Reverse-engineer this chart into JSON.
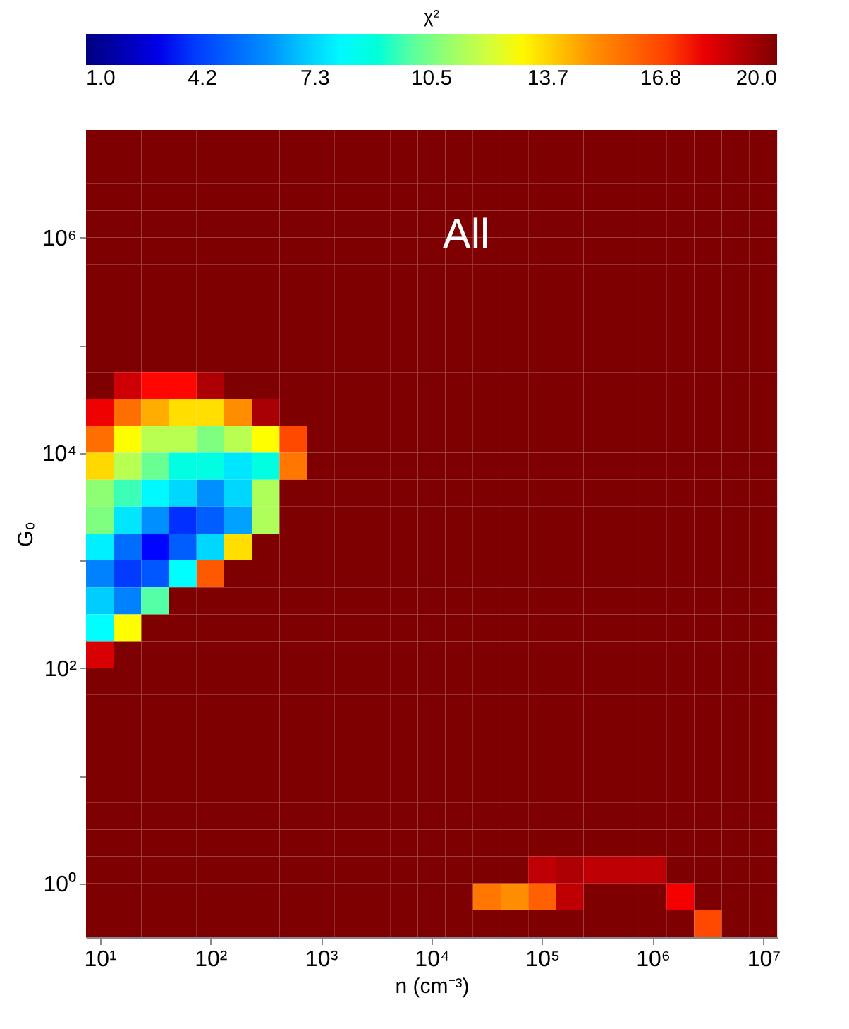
{
  "chart_data": {
    "type": "heatmap",
    "xlabel": "n (cm⁻³)",
    "ylabel": "G₀",
    "clabel": "χ²",
    "annotations": [
      "All"
    ],
    "log": "xy",
    "xlim": [
      7.499,
      13340000
    ],
    "ylim": [
      0.3162,
      10000000
    ],
    "xticks": [
      {
        "value": 10,
        "label": "10¹"
      },
      {
        "value": 100,
        "label": "10²"
      },
      {
        "value": 1000,
        "label": "10³"
      },
      {
        "value": 10000,
        "label": "10⁴"
      },
      {
        "value": 100000,
        "label": "10⁵"
      },
      {
        "value": 1000000,
        "label": "10⁶"
      },
      {
        "value": 10000000,
        "label": "10⁷"
      }
    ],
    "yticks": [
      {
        "value": 1,
        "label": "10⁰"
      },
      {
        "value": 10,
        "label": null
      },
      {
        "value": 100,
        "label": "10²"
      },
      {
        "value": 1000,
        "label": null
      },
      {
        "value": 10000,
        "label": "10⁴"
      },
      {
        "value": 100000,
        "label": null
      },
      {
        "value": 1000000,
        "label": "10⁶"
      }
    ],
    "clim": [
      1,
      20
    ],
    "cticks": [
      {
        "value": 1,
        "label": "1.0"
      },
      {
        "value": 4.2,
        "label": "4.2"
      },
      {
        "value": 7.3,
        "label": "7.3"
      },
      {
        "value": 10.5,
        "label": "10.5"
      },
      {
        "value": 13.7,
        "label": "13.7"
      },
      {
        "value": 16.8,
        "label": "16.8"
      },
      {
        "value": 20,
        "label": "20.0"
      }
    ],
    "x": [
      10,
      17.78,
      31.62,
      56.23,
      100,
      177.8,
      316.2,
      562.3,
      1000,
      1778,
      3162,
      5623,
      10000,
      17780,
      31620,
      56230,
      100000,
      177800,
      316200,
      562300,
      1000000,
      1778000,
      3162000,
      5623000,
      10000000
    ],
    "y": [
      7499000,
      4217000,
      2371000,
      1334000,
      749900,
      421700,
      237100,
      133400,
      74990,
      42170,
      23710,
      13340,
      7499,
      4217,
      2371,
      1334,
      749.9,
      421.7,
      237.1,
      133.4,
      74.99,
      42.17,
      23.71,
      13.34,
      7.499,
      4.217,
      2.371,
      1.334,
      0.7499,
      0.4217
    ],
    "cells": [
      [
        20,
        20,
        20,
        20,
        20,
        20,
        20,
        20,
        20,
        20,
        20,
        20,
        20,
        20,
        20,
        20,
        20,
        20,
        20,
        20,
        20,
        20,
        20,
        20,
        20
      ],
      [
        20,
        20,
        20,
        20,
        20,
        20,
        20,
        20,
        20,
        20,
        20,
        20,
        20,
        20,
        20,
        20,
        20,
        20,
        20,
        20,
        20,
        20,
        20,
        20,
        20
      ],
      [
        20,
        20,
        20,
        20,
        20,
        20,
        20,
        20,
        20,
        20,
        20,
        20,
        20,
        20,
        20,
        20,
        20,
        20,
        20,
        20,
        20,
        20,
        20,
        20,
        20
      ],
      [
        20,
        20,
        20,
        20,
        20,
        20,
        20,
        20,
        20,
        20,
        20,
        20,
        20,
        20,
        20,
        20,
        20,
        20,
        20,
        20,
        20,
        20,
        20,
        20,
        20
      ],
      [
        20,
        20,
        20,
        20,
        20,
        20,
        20,
        20,
        20,
        20,
        20,
        20,
        20,
        20,
        20,
        20,
        20,
        20,
        20,
        20,
        20,
        20,
        20,
        20,
        20
      ],
      [
        20,
        20,
        20,
        20,
        20,
        20,
        20,
        20,
        20,
        20,
        20,
        20,
        20,
        20,
        20,
        20,
        20,
        20,
        20,
        20,
        20,
        20,
        20,
        20,
        20
      ],
      [
        20,
        20,
        20,
        20,
        20,
        20,
        20,
        20,
        20,
        20,
        20,
        20,
        20,
        20,
        20,
        20,
        20,
        20,
        20,
        20,
        20,
        20,
        20,
        20,
        20
      ],
      [
        20,
        20,
        20,
        20,
        20,
        20,
        20,
        20,
        20,
        20,
        20,
        20,
        20,
        20,
        20,
        20,
        20,
        20,
        20,
        20,
        20,
        20,
        20,
        20,
        20
      ],
      [
        20,
        20,
        20,
        20,
        20,
        20,
        20,
        20,
        20,
        20,
        20,
        20,
        20,
        20,
        20,
        20,
        20,
        20,
        20,
        20,
        20,
        20,
        20,
        20,
        20
      ],
      [
        20,
        18.5,
        17.6,
        17.6,
        19.1,
        20,
        20,
        20,
        20,
        20,
        20,
        20,
        20,
        20,
        20,
        20,
        20,
        20,
        20,
        20,
        20,
        20,
        20,
        20,
        20
      ],
      [
        17.9,
        15.8,
        14.4,
        13.5,
        13.5,
        15.0,
        19.2,
        20,
        20,
        20,
        20,
        20,
        20,
        20,
        20,
        20,
        20,
        20,
        20,
        20,
        20,
        20,
        20,
        20,
        20
      ],
      [
        15.8,
        12.9,
        11.6,
        11.6,
        10.5,
        11.6,
        12.9,
        16.8,
        20,
        20,
        20,
        20,
        20,
        20,
        20,
        20,
        20,
        20,
        20,
        20,
        20,
        20,
        20,
        20,
        20
      ],
      [
        13.6,
        11.6,
        10.2,
        8.8,
        8.8,
        7.6,
        8.8,
        15.5,
        20,
        20,
        20,
        20,
        20,
        20,
        20,
        20,
        20,
        20,
        20,
        20,
        20,
        20,
        20,
        20,
        20
      ],
      [
        10.8,
        9.6,
        8.0,
        7.3,
        6.0,
        7.3,
        11.4,
        20,
        20,
        20,
        20,
        20,
        20,
        20,
        20,
        20,
        20,
        20,
        20,
        20,
        20,
        20,
        20,
        20,
        20
      ],
      [
        10.5,
        7.6,
        6.0,
        3.8,
        4.8,
        6.3,
        11.4,
        20,
        20,
        20,
        20,
        20,
        20,
        20,
        20,
        20,
        20,
        20,
        20,
        20,
        20,
        20,
        20,
        20,
        20
      ],
      [
        7.8,
        5.2,
        3.4,
        4.8,
        7.3,
        13.5,
        20,
        20,
        20,
        20,
        20,
        20,
        20,
        20,
        20,
        20,
        20,
        20,
        20,
        20,
        20,
        20,
        20,
        20,
        20
      ],
      [
        5.8,
        4.0,
        4.6,
        8.1,
        16.4,
        20,
        20,
        20,
        20,
        20,
        20,
        20,
        20,
        20,
        20,
        20,
        20,
        20,
        20,
        20,
        20,
        20,
        20,
        20,
        20
      ],
      [
        7.1,
        5.8,
        9.9,
        20,
        20,
        20,
        20,
        20,
        20,
        20,
        20,
        20,
        20,
        20,
        20,
        20,
        20,
        20,
        20,
        20,
        20,
        20,
        20,
        20,
        20
      ],
      [
        8.1,
        12.9,
        20,
        20,
        20,
        20,
        20,
        20,
        20,
        20,
        20,
        20,
        20,
        20,
        20,
        20,
        20,
        20,
        20,
        20,
        20,
        20,
        20,
        20,
        20
      ],
      [
        18.3,
        20,
        20,
        20,
        20,
        20,
        20,
        20,
        20,
        20,
        20,
        20,
        20,
        20,
        20,
        20,
        20,
        20,
        20,
        20,
        20,
        20,
        20,
        20,
        20
      ],
      [
        20,
        20,
        20,
        20,
        20,
        20,
        20,
        20,
        20,
        20,
        20,
        20,
        20,
        20,
        20,
        20,
        20,
        20,
        20,
        20,
        20,
        20,
        20,
        20,
        20
      ],
      [
        20,
        20,
        20,
        20,
        20,
        20,
        20,
        20,
        20,
        20,
        20,
        20,
        20,
        20,
        20,
        20,
        20,
        20,
        20,
        20,
        20,
        20,
        20,
        20,
        20
      ],
      [
        20,
        20,
        20,
        20,
        20,
        20,
        20,
        20,
        20,
        20,
        20,
        20,
        20,
        20,
        20,
        20,
        20,
        20,
        20,
        20,
        20,
        20,
        20,
        20,
        20
      ],
      [
        20,
        20,
        20,
        20,
        20,
        20,
        20,
        20,
        20,
        20,
        20,
        20,
        20,
        20,
        20,
        20,
        20,
        20,
        20,
        20,
        20,
        20,
        20,
        20,
        20
      ],
      [
        20,
        20,
        20,
        20,
        20,
        20,
        20,
        20,
        20,
        20,
        20,
        20,
        20,
        20,
        20,
        20,
        20,
        20,
        20,
        20,
        20,
        20,
        20,
        20,
        20
      ],
      [
        20,
        20,
        20,
        20,
        20,
        20,
        20,
        20,
        20,
        20,
        20,
        20,
        20,
        20,
        20,
        20,
        20,
        20,
        20,
        20,
        20,
        20,
        20,
        20,
        20
      ],
      [
        20,
        20,
        20,
        20,
        20,
        20,
        20,
        20,
        20,
        20,
        20,
        20,
        20,
        20,
        20,
        20,
        20,
        20,
        20,
        20,
        20,
        20,
        20,
        20,
        20
      ],
      [
        20,
        20,
        20,
        20,
        20,
        20,
        20,
        20,
        20,
        20,
        20,
        20,
        20,
        20,
        20,
        20,
        18.8,
        19.1,
        18.8,
        18.8,
        18.8,
        20,
        20,
        20,
        20
      ],
      [
        20,
        20,
        20,
        20,
        20,
        20,
        20,
        20,
        20,
        20,
        20,
        20,
        20,
        20,
        15.5,
        15.0,
        16.2,
        18.8,
        20,
        20,
        20,
        17.8,
        20,
        20,
        20
      ],
      [
        20,
        20,
        20,
        20,
        20,
        20,
        20,
        20,
        20,
        20,
        20,
        20,
        20,
        20,
        20,
        20,
        20,
        20,
        20,
        20,
        20,
        20,
        16.8,
        20,
        20
      ]
    ]
  }
}
